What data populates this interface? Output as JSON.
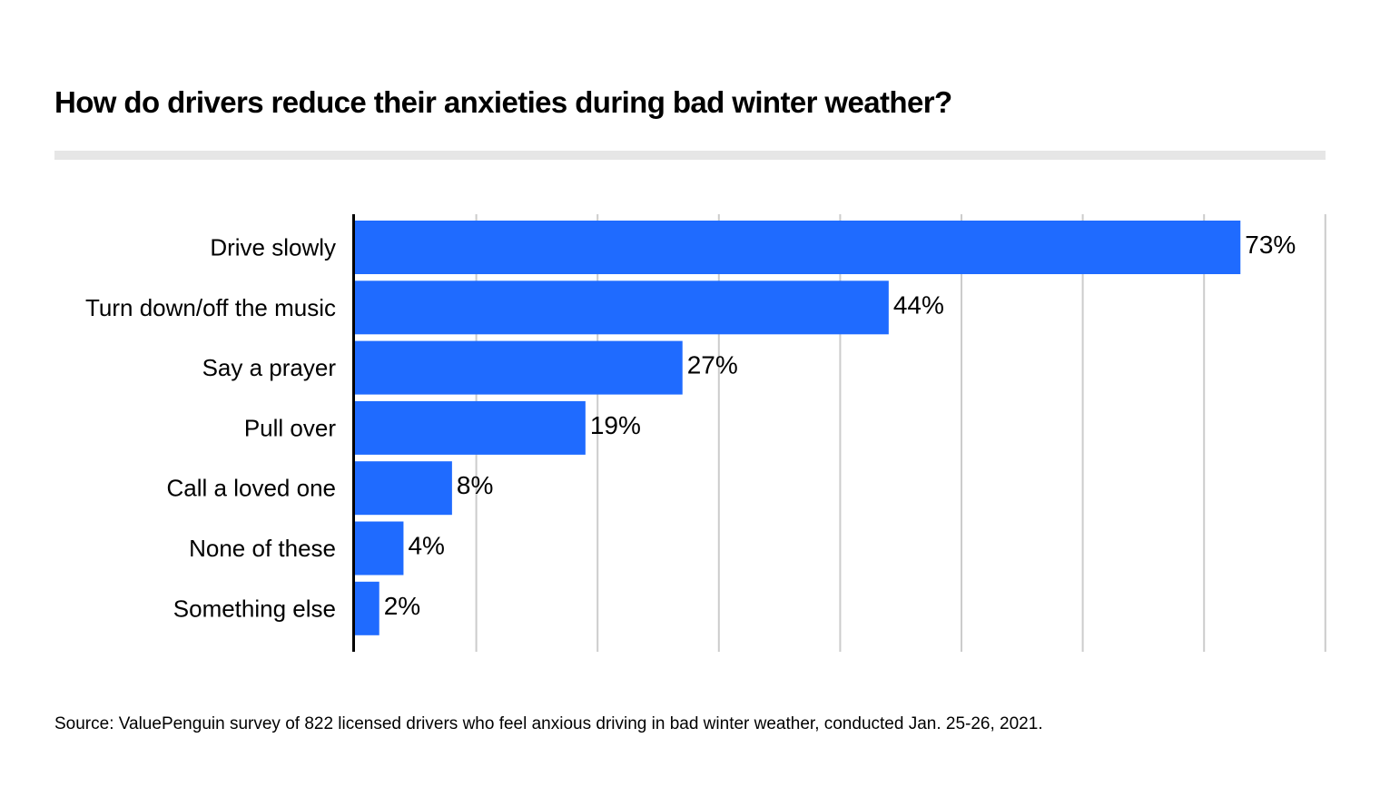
{
  "chart_data": {
    "type": "bar",
    "orientation": "horizontal",
    "title": "How do drivers reduce their anxieties during bad winter weather?",
    "categories": [
      "Drive slowly",
      "Turn down/off the music",
      "Say a prayer",
      "Pull over",
      "Call a loved one",
      "None of these",
      "Something else"
    ],
    "values": [
      73,
      44,
      27,
      19,
      8,
      4,
      2
    ],
    "value_labels": [
      "73%",
      "44%",
      "27%",
      "19%",
      "8%",
      "4%",
      "2%"
    ],
    "xlim": [
      0,
      80
    ],
    "grid": true,
    "grid_interval": 10,
    "bar_color": "#1f6bff",
    "gridline_color": "#cccccc",
    "axis_color": "#000000"
  },
  "source": "Source: ValuePenguin survey of 822 licensed drivers who feel anxious driving in bad winter weather, conducted Jan. 25-26, 2021."
}
